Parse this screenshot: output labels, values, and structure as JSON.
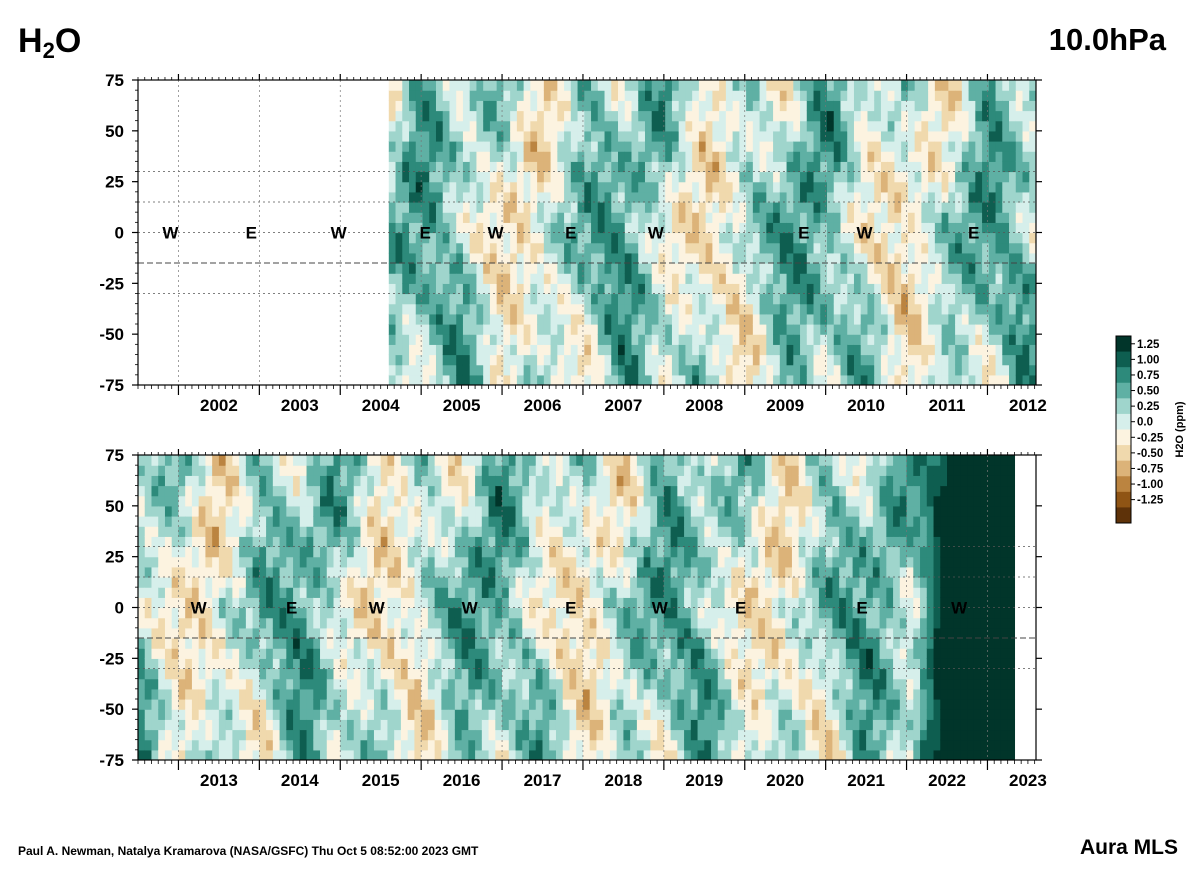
{
  "header": {
    "species_main": "H",
    "species_sub": "2",
    "species_end": "O",
    "level": "10.0hPa"
  },
  "footer": {
    "credit": "Paul A. Newman, Natalya Kramarova (NASA/GSFC) Thu Oct  5 08:52:00 2023 GMT",
    "instrument": "Aura MLS"
  },
  "chart_data": [
    {
      "type": "heatmap",
      "panel": "top",
      "x_range": [
        2001.5,
        2012.6
      ],
      "y_range": [
        -75,
        75
      ],
      "data_start": 2004.6,
      "x_tick_labels": [
        "2002",
        "2003",
        "2004",
        "2005",
        "2006",
        "2007",
        "2008",
        "2009",
        "2010",
        "2011",
        "2012"
      ],
      "y_tick_labels": [
        "75",
        "50",
        "25",
        "0",
        "-25",
        "-50",
        "-75"
      ],
      "y_ticks": [
        75,
        50,
        25,
        0,
        -25,
        -50,
        -75
      ],
      "dotted_lat": [
        30,
        15,
        0,
        -30
      ],
      "dashed_lat": [
        -15
      ],
      "qbo_labels": [
        {
          "t": 2001.9,
          "label": "W"
        },
        {
          "t": 2002.9,
          "label": "E"
        },
        {
          "t": 2003.98,
          "label": "W"
        },
        {
          "t": 2005.05,
          "label": "E"
        },
        {
          "t": 2005.92,
          "label": "W"
        },
        {
          "t": 2006.85,
          "label": "E"
        },
        {
          "t": 2007.9,
          "label": "W"
        },
        {
          "t": 2009.73,
          "label": "E"
        },
        {
          "t": 2010.48,
          "label": "W"
        },
        {
          "t": 2011.83,
          "label": "E"
        }
      ]
    },
    {
      "type": "heatmap",
      "panel": "bottom",
      "x_range": [
        2012.5,
        2023.6
      ],
      "y_range": [
        -75,
        75
      ],
      "data_end": 2023.3,
      "x_tick_labels": [
        "2013",
        "2014",
        "2015",
        "2016",
        "2017",
        "2018",
        "2019",
        "2020",
        "2021",
        "2022",
        "2023"
      ],
      "y_tick_labels": [
        "75",
        "50",
        "25",
        "0",
        "-25",
        "-50",
        "-75"
      ],
      "y_ticks": [
        75,
        50,
        25,
        0,
        -25,
        -50,
        -75
      ],
      "dotted_lat": [
        30,
        15,
        0,
        -30
      ],
      "dashed_lat": [
        -15
      ],
      "qbo_labels": [
        {
          "t": 2013.25,
          "label": "W"
        },
        {
          "t": 2014.4,
          "label": "E"
        },
        {
          "t": 2015.45,
          "label": "W"
        },
        {
          "t": 2016.6,
          "label": "W"
        },
        {
          "t": 2017.85,
          "label": "E"
        },
        {
          "t": 2018.95,
          "label": "W"
        },
        {
          "t": 2019.95,
          "label": "E"
        },
        {
          "t": 2021.45,
          "label": "E"
        },
        {
          "t": 2022.65,
          "label": "W"
        }
      ]
    }
  ],
  "colorbar": {
    "label": "H2O (ppm)",
    "ticks": [
      "1.25",
      "1.00",
      "0.75",
      "0.50",
      "0.25",
      "0.0",
      "-0.25",
      "-0.50",
      "-0.75",
      "-1.00",
      "-1.25"
    ],
    "colors": [
      "#01352a",
      "#0e5e50",
      "#2d8a7b",
      "#5fb0a4",
      "#9fd5cc",
      "#d6efeb",
      "#fcf3e0",
      "#f0d9ad",
      "#dcb379",
      "#bb8440",
      "#8f5414",
      "#5e3209"
    ]
  }
}
